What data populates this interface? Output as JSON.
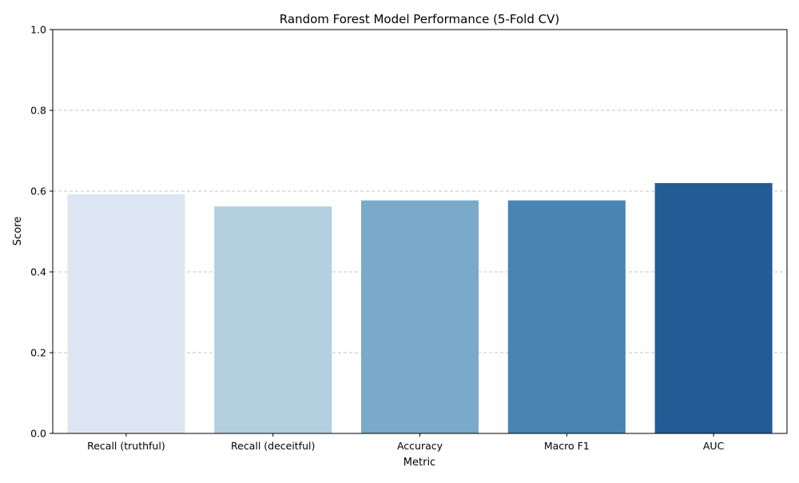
{
  "chart_data": {
    "type": "bar",
    "title": "Random Forest Model Performance (5-Fold CV)",
    "xlabel": "Metric",
    "ylabel": "Score",
    "categories": [
      "Recall (truthful)",
      "Recall (deceitful)",
      "Accuracy",
      "Macro F1",
      "AUC"
    ],
    "values": [
      0.592,
      0.562,
      0.577,
      0.577,
      0.62
    ],
    "colors": [
      "#dce6f2",
      "#b4cfe0",
      "#79aac9",
      "#4884b4",
      "#225c94"
    ],
    "ylim": [
      0,
      1
    ],
    "yticks": [
      "0.0",
      "0.2",
      "0.4",
      "0.6",
      "0.8",
      "1.0"
    ],
    "grid": "y-dashed",
    "legend": "none"
  }
}
